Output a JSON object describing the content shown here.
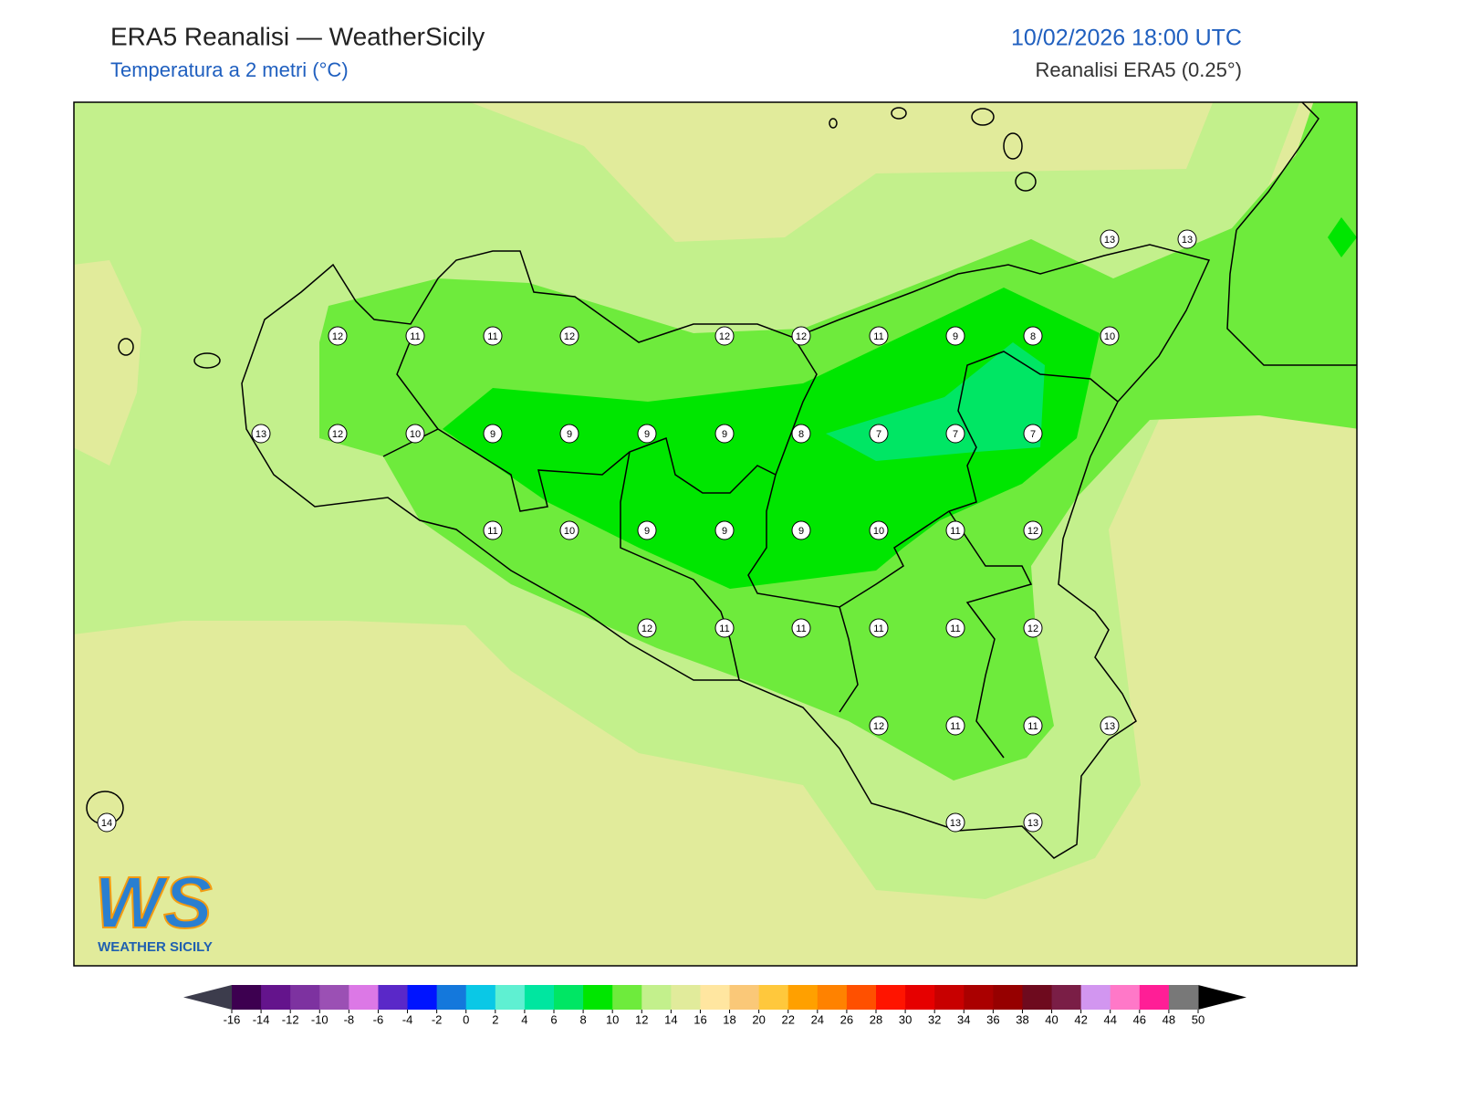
{
  "header": {
    "title": "ERA5 Reanalisi — WeatherSicily",
    "subtitle": "Temperatura a 2 metri (°C)",
    "datetime": "10/02/2026 18:00 UTC",
    "source": "Reanalisi ERA5 (0.25°)"
  },
  "map": {
    "station_values": [
      13,
      13,
      12,
      11,
      11,
      12,
      12,
      12,
      11,
      9,
      8,
      10,
      13,
      12,
      10,
      9,
      9,
      9,
      9,
      8,
      7,
      7,
      7,
      11,
      10,
      9,
      9,
      9,
      10,
      11,
      12,
      12,
      11,
      11,
      11,
      11,
      12,
      12,
      11,
      11,
      13,
      14,
      13,
      13
    ]
  },
  "colorbar": {
    "ticks": [
      -16,
      -14,
      -12,
      -10,
      -8,
      -6,
      -4,
      -2,
      0,
      2,
      4,
      6,
      8,
      10,
      12,
      14,
      16,
      18,
      20,
      22,
      24,
      26,
      28,
      30,
      32,
      34,
      36,
      38,
      40,
      42,
      44,
      46,
      48,
      50
    ],
    "colors": [
      "#3d0050",
      "#64148c",
      "#7d32a0",
      "#9b50b4",
      "#dc78e6",
      "#5a28c8",
      "#0014ff",
      "#1478dc",
      "#0ac8e6",
      "#5ff0d2",
      "#00e6a0",
      "#00e664",
      "#00e600",
      "#6eeb3c",
      "#c3f08c",
      "#e1eb9b",
      "#ffe6a0",
      "#fac878",
      "#ffc83c",
      "#ffa000",
      "#ff8200",
      "#ff5000",
      "#ff1400",
      "#e60000",
      "#c80000",
      "#aa0000",
      "#960000",
      "#6e0a1e",
      "#7a1e46",
      "#d296f0",
      "#ff78c8",
      "#ff1e96",
      "#787878"
    ],
    "under_color": "#3c3c4c",
    "over_color": "#000000"
  },
  "logo": {
    "mark": "WS",
    "name": "WEATHER SICILY"
  }
}
